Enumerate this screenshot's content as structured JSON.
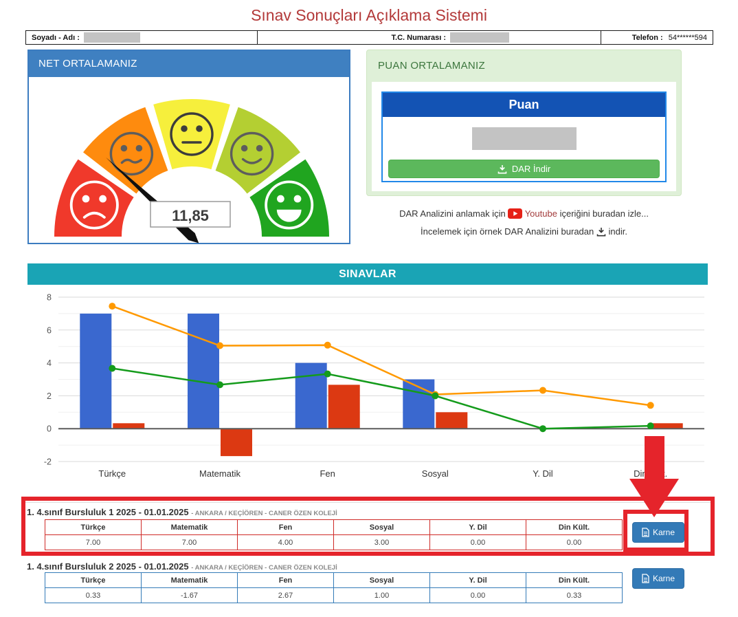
{
  "page_title": "Sınav Sonuçları Açıklama Sistemi",
  "identity_bar": {
    "name_label": "Soyadı - Adı :",
    "tc_label": "T.C. Numarası :",
    "phone_label": "Telefon :",
    "phone_value": "54******594"
  },
  "net_panel": {
    "title": "NET ORTALAMANIZ",
    "gauge": {
      "value": 11.85,
      "display": "11,85",
      "min": 0,
      "max": 50,
      "needle_color": "#111111",
      "segments": [
        {
          "face": "frown-face",
          "color": "#f0392b",
          "face_color": "#ffffff"
        },
        {
          "face": "confused-face",
          "color": "#fe8b0e",
          "face_color": "#5d5d5d"
        },
        {
          "face": "neutral-face",
          "color": "#f6ef3c",
          "face_color": "#3c3c3c"
        },
        {
          "face": "slight-smile-face",
          "color": "#b4cf32",
          "face_color": "#5d5d5d"
        },
        {
          "face": "big-smile-face",
          "color": "#20a51f",
          "face_color": "#ffffff"
        }
      ]
    }
  },
  "puan_panel": {
    "title": "PUAN ORTALAMANIZ",
    "column_header": "Puan",
    "download_button_label": "DAR İndir"
  },
  "info": {
    "line1_prefix": "DAR Analizini anlamak için",
    "youtube_link": "Youtube",
    "line1_suffix": "içeriğini buradan izle...",
    "line2_prefix": "İncelemek için örnek DAR Analizini buradan",
    "line2_link": "indir."
  },
  "sinavlar_title": "SINAVLAR",
  "chart_data": {
    "type": "combo",
    "categories": [
      "Türkçe",
      "Matematik",
      "Fen",
      "Sosyal",
      "Y. Dil",
      "Din Kült."
    ],
    "series": [
      {
        "name": "blue-bars",
        "type": "bar",
        "color": "#3a68cf",
        "values": [
          7.0,
          7.0,
          4.0,
          3.0,
          0.0,
          0.0
        ]
      },
      {
        "name": "red-bars",
        "type": "bar",
        "color": "#dc3912",
        "values": [
          0.33,
          -1.67,
          2.67,
          1.0,
          0.0,
          0.33
        ]
      },
      {
        "name": "orange-line",
        "type": "line",
        "color": "#ff9900",
        "values": [
          7.45,
          5.05,
          5.08,
          2.08,
          2.33,
          1.42
        ]
      },
      {
        "name": "green-line",
        "type": "line",
        "color": "#149b1b",
        "values": [
          3.67,
          2.67,
          3.33,
          2.0,
          0.0,
          0.17
        ]
      }
    ],
    "ylim": [
      -2,
      8
    ],
    "yticks": [
      -2,
      0,
      2,
      4,
      6,
      8
    ],
    "grid": true,
    "legend": "none",
    "title": "SINAVLAR",
    "xlabel": "",
    "ylabel": ""
  },
  "exams": [
    {
      "title": "1. 4.sınıf Bursluluk 1 2025 - 01.01.2025",
      "location_text": "- ANKARA / KEÇİÖREN - CANER ÖZEN KOLEJİ",
      "columns": [
        "Türkçe",
        "Matematik",
        "Fen",
        "Sosyal",
        "Y. Dil",
        "Din Kült."
      ],
      "values": [
        "7.00",
        "7.00",
        "4.00",
        "3.00",
        "0.00",
        "0.00"
      ],
      "button_label": "Karne",
      "highlighted": true
    },
    {
      "title": "1. 4.sınıf Bursluluk 2 2025 - 01.01.2025",
      "location_text": "- ANKARA / KEÇİÖREN - CANER ÖZEN KOLEJİ",
      "columns": [
        "Türkçe",
        "Matematik",
        "Fen",
        "Sosyal",
        "Y. Dil",
        "Din Kült."
      ],
      "values": [
        "0.33",
        "-1.67",
        "2.67",
        "1.00",
        "0.00",
        "0.33"
      ],
      "button_label": "Karne",
      "highlighted": false
    }
  ],
  "annotations": {
    "arrow_color": "#e5242b",
    "highlight_color": "#e5242b"
  },
  "colors": {
    "title_red": "#b33939",
    "panel_blue": "#3f80c1",
    "panel_green_bg": "#dff0d8",
    "panel_green_text": "#3c763d",
    "puan_header_blue": "#1353b4",
    "button_green": "#5cb85c",
    "sinavlar_teal": "#1aa4b5",
    "table1_border_red": "#cf2a27",
    "table2_border_blue": "#337ab7",
    "karne_button_blue": "#337ab7",
    "youtube_red": "#e62117"
  }
}
